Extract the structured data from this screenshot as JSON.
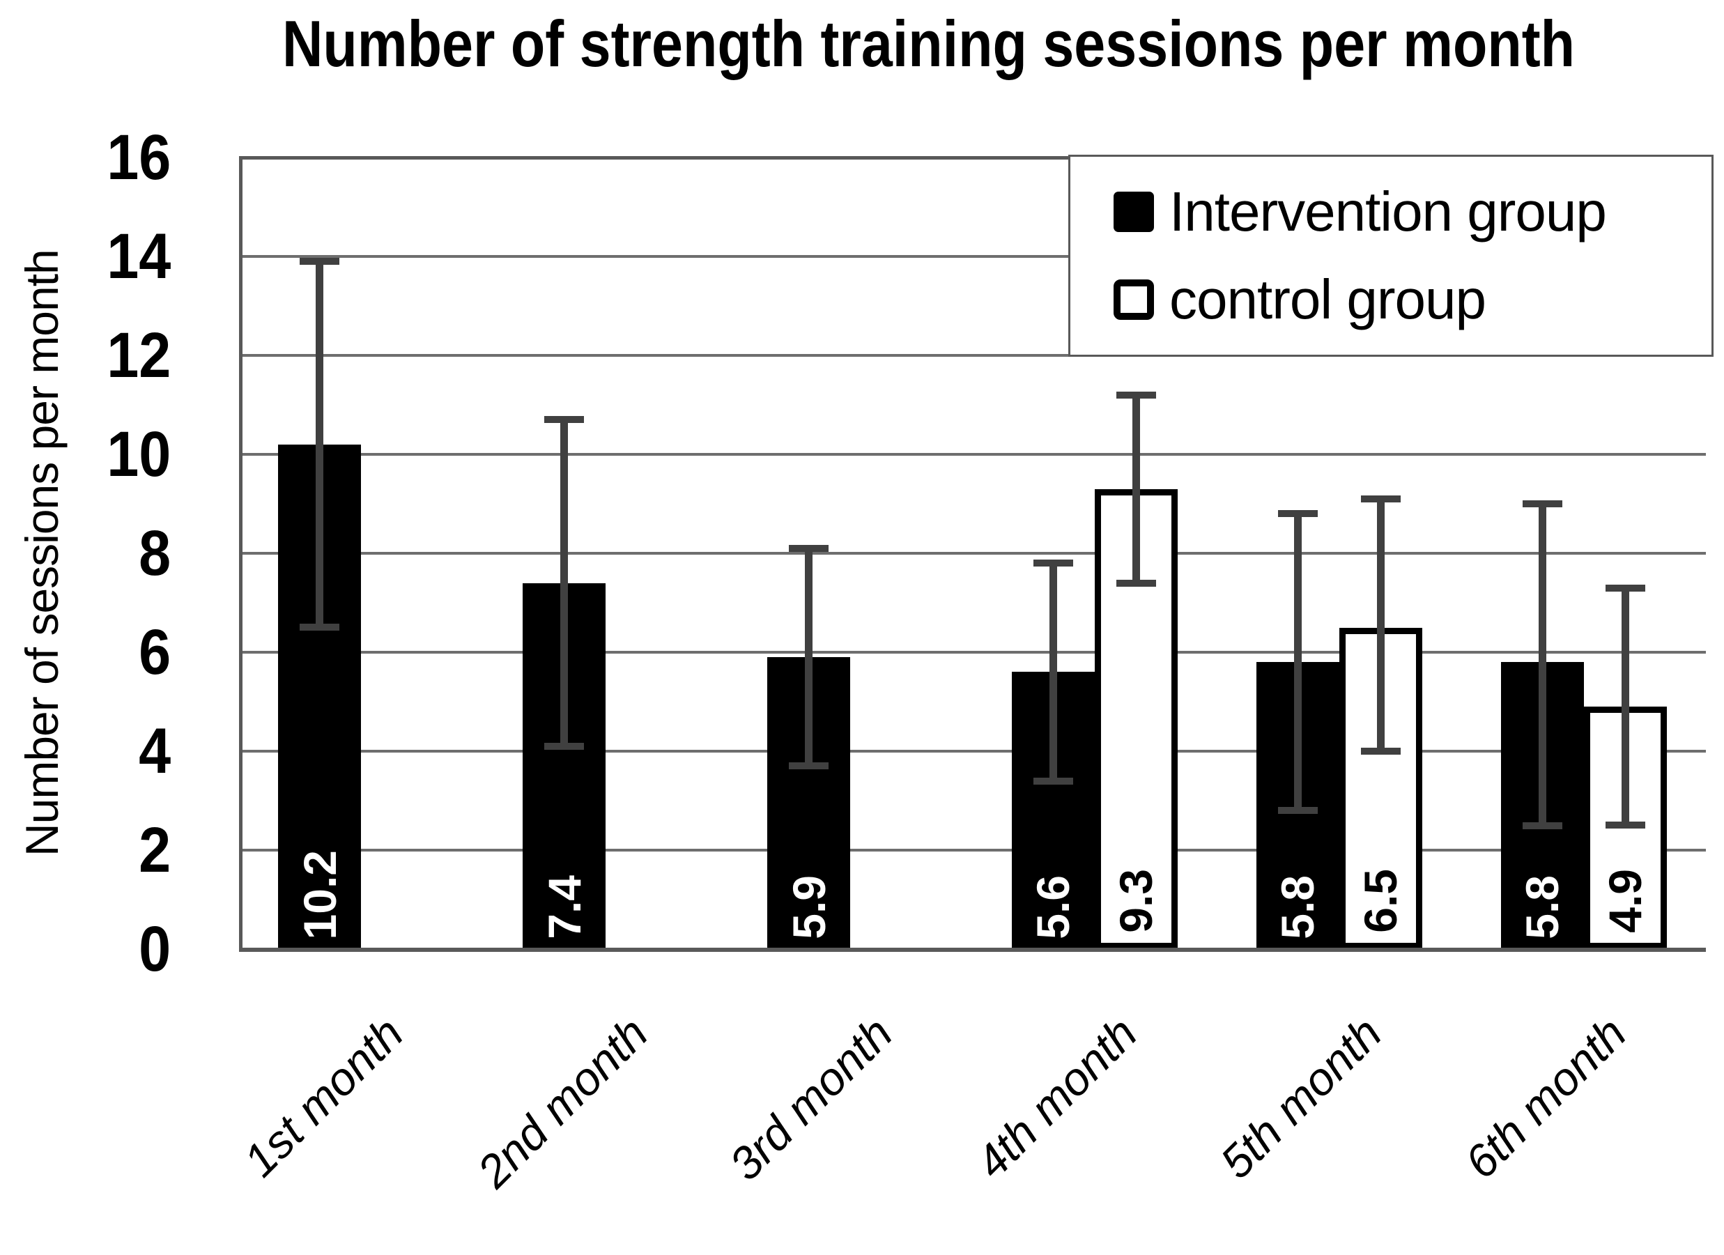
{
  "chart_data": {
    "type": "bar",
    "title": "Number of strength training sessions per month",
    "ylabel": "Number of sessions per month",
    "xlabel": "",
    "ylim": [
      0,
      16
    ],
    "yticks": [
      0,
      2,
      4,
      6,
      8,
      10,
      12,
      14,
      16
    ],
    "grid": true,
    "legend_position": "top-right",
    "categories": [
      "1st month",
      "2nd month",
      "3rd month",
      "4th month",
      "5th month",
      "6th month"
    ],
    "series": [
      {
        "name": "Intervention group",
        "style": "filled-black",
        "values": [
          10.2,
          7.4,
          5.9,
          5.6,
          5.8,
          5.8
        ],
        "labels": [
          "10.2",
          "7.4",
          "5.9",
          "5.6",
          "5.8",
          "5.8"
        ],
        "error_low": [
          6.5,
          4.1,
          3.7,
          3.4,
          2.8,
          2.5
        ],
        "error_high": [
          13.9,
          10.7,
          8.1,
          7.8,
          8.8,
          9.0
        ]
      },
      {
        "name": "control group",
        "style": "outlined-white",
        "values": [
          null,
          null,
          null,
          9.3,
          6.5,
          4.9
        ],
        "labels": [
          null,
          null,
          null,
          "9.3",
          "6.5",
          "4.9"
        ],
        "error_low": [
          null,
          null,
          null,
          7.4,
          4.0,
          2.5
        ],
        "error_high": [
          null,
          null,
          null,
          11.2,
          9.1,
          7.3
        ]
      }
    ],
    "colors": {
      "bar_filled": "#000000",
      "bar_outline_fill": "#ffffff",
      "bar_outline_border": "#000000",
      "label_on_filled": "#ffffff",
      "label_on_outlined": "#000000",
      "gridline": "#6e6e6e",
      "axis": "#595959",
      "error_bar": "#404040",
      "text": "#000000",
      "background": "#ffffff"
    }
  }
}
